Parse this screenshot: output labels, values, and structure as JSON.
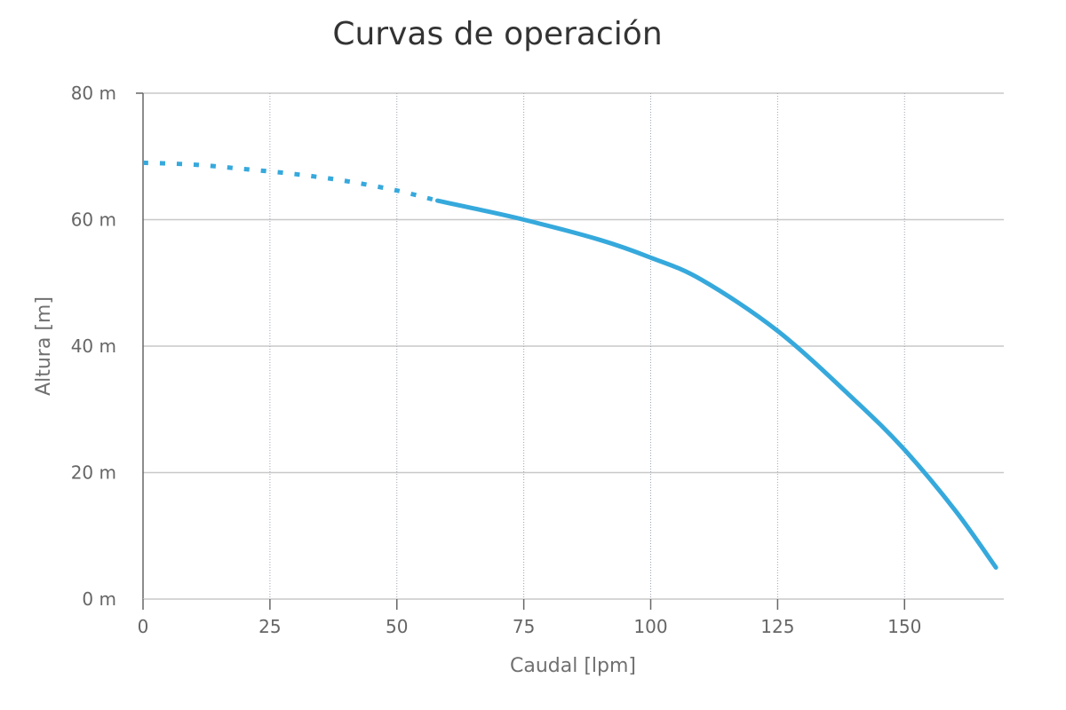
{
  "chart_data": {
    "type": "line",
    "title": "Curvas de operación",
    "xlabel": "Caudal [lpm]",
    "ylabel": "Altura [m]",
    "xlim": [
      0,
      170
    ],
    "ylim": [
      0,
      80
    ],
    "x_ticks": [
      0,
      25,
      50,
      75,
      100,
      125,
      150
    ],
    "y_ticks": [
      0,
      20,
      40,
      60,
      80
    ],
    "y_unit": "m",
    "grid": true,
    "legend": "none",
    "colors": {
      "series": "#36a9dc",
      "grid": "#c8c8c8",
      "axis": "#666666"
    },
    "series": [
      {
        "style": "dotted",
        "x": [
          0,
          10,
          20,
          30,
          40,
          50,
          58
        ],
        "y": [
          69,
          68.7,
          68,
          67.2,
          66.1,
          64.6,
          63
        ]
      },
      {
        "style": "solid",
        "x": [
          58,
          65,
          75,
          90,
          100,
          110,
          125,
          140,
          150,
          160,
          168
        ],
        "y": [
          63,
          61.8,
          60,
          56.8,
          54,
          50.5,
          42.4,
          31.6,
          23.6,
          14,
          5
        ]
      }
    ]
  }
}
